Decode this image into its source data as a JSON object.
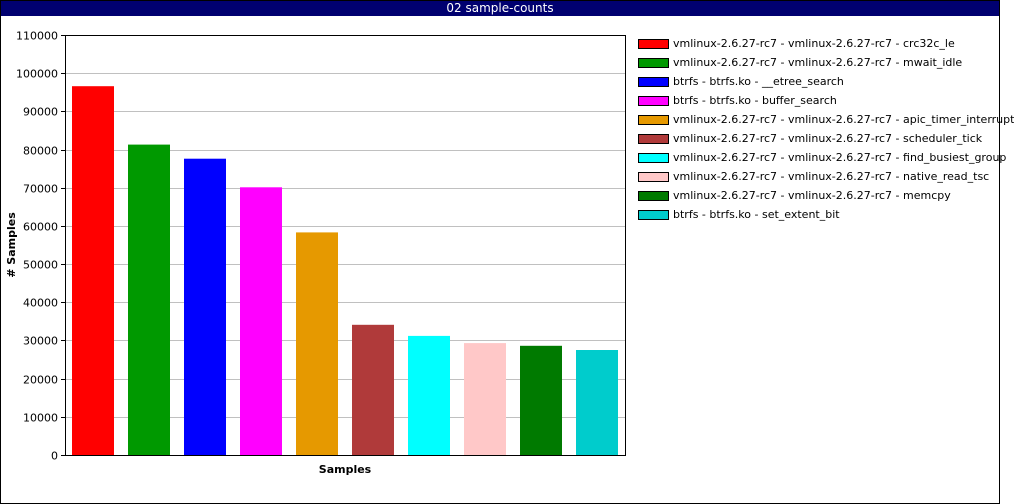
{
  "window": {
    "title": "02 sample-counts"
  },
  "chart_data": {
    "type": "bar",
    "title": "02 sample-counts",
    "xlabel": "Samples",
    "ylabel": "# Samples",
    "ylim": [
      0,
      110000
    ],
    "yticks": [
      "0",
      "10000",
      "20000",
      "30000",
      "40000",
      "50000",
      "60000",
      "70000",
      "80000",
      "90000",
      "100000",
      "110000"
    ],
    "grid": true,
    "legend_position": "right",
    "categories": [
      "vmlinux-2.6.27-rc7 - vmlinux-2.6.27-rc7 - crc32c_le",
      "vmlinux-2.6.27-rc7 - vmlinux-2.6.27-rc7 - mwait_idle",
      "btrfs - btrfs.ko - __etree_search",
      "btrfs - btrfs.ko - buffer_search",
      "vmlinux-2.6.27-rc7 - vmlinux-2.6.27-rc7 - apic_timer_interrupt",
      "vmlinux-2.6.27-rc7 - vmlinux-2.6.27-rc7 - scheduler_tick",
      "vmlinux-2.6.27-rc7 - vmlinux-2.6.27-rc7 - find_busiest_group",
      "vmlinux-2.6.27-rc7 - vmlinux-2.6.27-rc7 - native_read_tsc",
      "vmlinux-2.6.27-rc7 - vmlinux-2.6.27-rc7 - memcpy",
      "btrfs - btrfs.ko - set_extent_bit"
    ],
    "values": [
      96600,
      81300,
      77600,
      70100,
      58300,
      34100,
      31200,
      29300,
      28600,
      27500
    ],
    "colors": [
      "#ff0000",
      "#009900",
      "#0000ff",
      "#ff00ff",
      "#e69900",
      "#b03a3a",
      "#00ffff",
      "#ffc8c8",
      "#007a00",
      "#00cccc"
    ]
  }
}
